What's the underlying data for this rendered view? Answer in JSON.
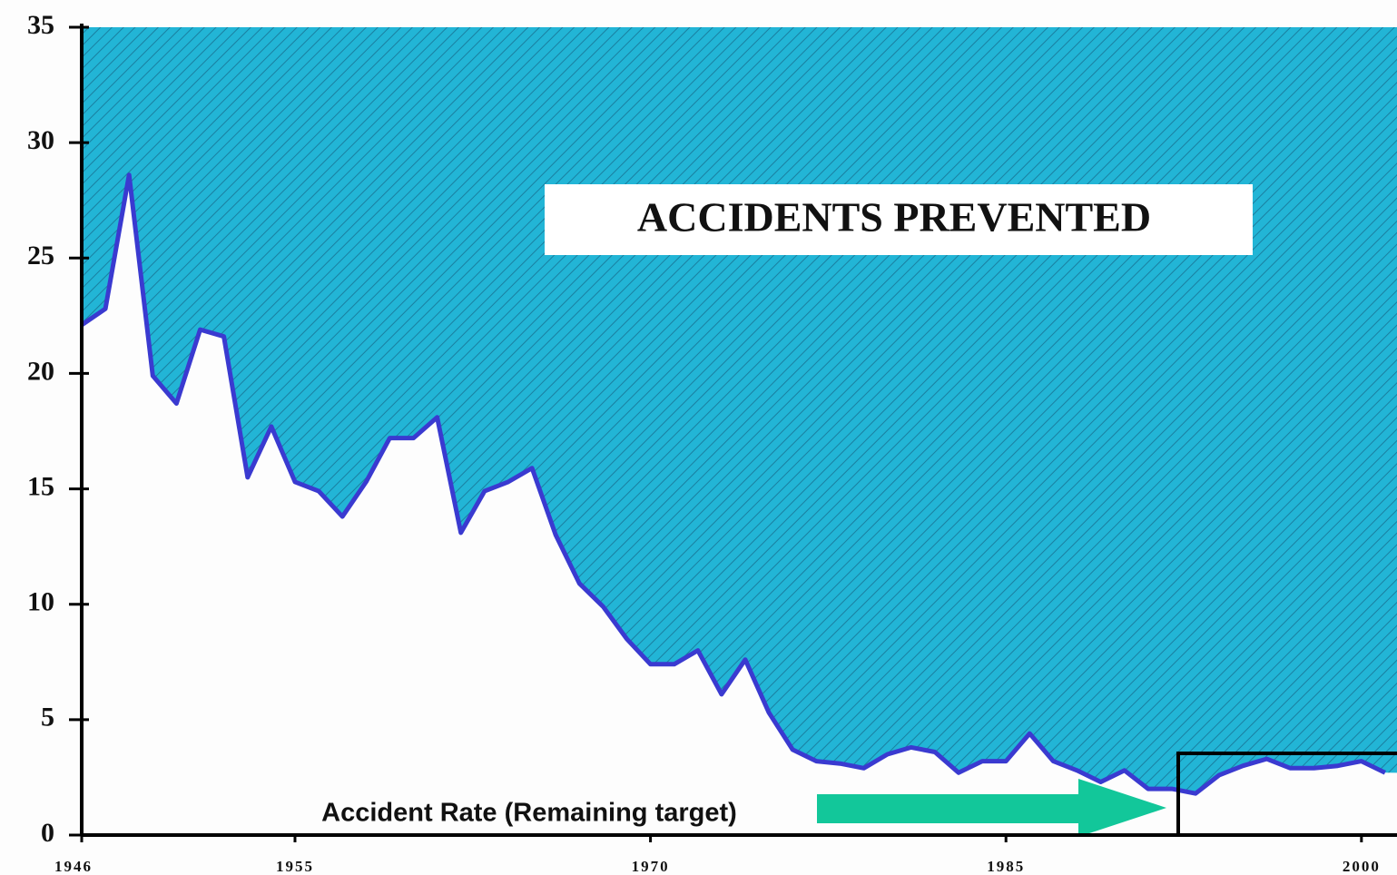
{
  "chart_data": {
    "type": "area",
    "x": [
      1946,
      1947,
      1948,
      1949,
      1950,
      1951,
      1952,
      1953,
      1954,
      1955,
      1956,
      1957,
      1958,
      1959,
      1960,
      1961,
      1962,
      1963,
      1964,
      1965,
      1966,
      1967,
      1968,
      1969,
      1970,
      1971,
      1972,
      1973,
      1974,
      1975,
      1976,
      1977,
      1978,
      1979,
      1980,
      1981,
      1982,
      1983,
      1984,
      1985,
      1986,
      1987,
      1988,
      1989,
      1990,
      1991,
      1992,
      1993,
      1994,
      1995,
      1996,
      1997,
      1998,
      1999,
      2000,
      2001
    ],
    "values": [
      22.1,
      22.8,
      28.6,
      19.9,
      18.7,
      21.9,
      21.6,
      15.5,
      17.7,
      15.3,
      14.9,
      13.8,
      15.3,
      17.2,
      17.2,
      18.1,
      13.1,
      14.9,
      15.3,
      15.9,
      13.0,
      10.9,
      9.9,
      8.5,
      7.4,
      7.4,
      8.0,
      6.1,
      7.6,
      5.3,
      3.7,
      3.2,
      3.1,
      2.9,
      3.5,
      3.8,
      3.6,
      2.7,
      3.2,
      3.2,
      4.4,
      3.2,
      2.8,
      2.3,
      2.8,
      2.0,
      2.0,
      1.8,
      2.6,
      3.0,
      3.3,
      2.9,
      2.9,
      3.0,
      3.2,
      2.7
    ],
    "color": "#3a3ad0",
    "fill_color": "#22b5d6",
    "xlim": [
      1946,
      2001.5
    ],
    "xticks": [
      1946,
      1955,
      1970,
      1985,
      2000
    ],
    "ylim": [
      0,
      35
    ],
    "yticks": [
      0,
      5,
      10,
      15,
      20,
      25,
      30,
      35
    ],
    "annotations": [
      "ACCIDENTS PREVENTED",
      "Accident Rate (Remaining target)"
    ]
  }
}
